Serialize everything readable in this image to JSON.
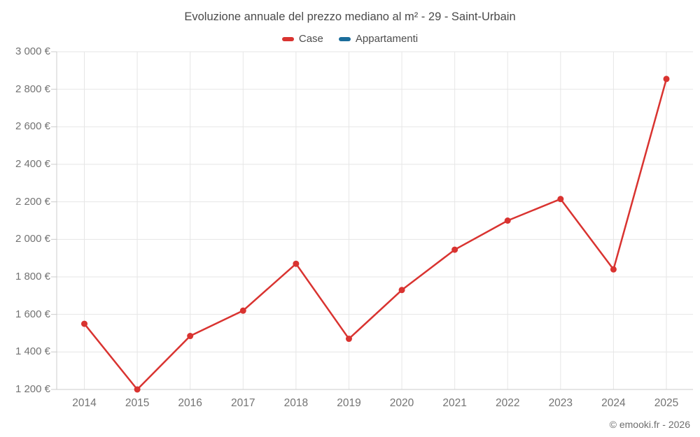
{
  "title": "Evoluzione annuale del prezzo mediano al m² - 29 - Saint-Urbain",
  "credit": "© emooki.fr - 2026",
  "legend": [
    {
      "label": "Case",
      "color": "#d93330"
    },
    {
      "label": "Appartamenti",
      "color": "#1b6d9b"
    }
  ],
  "colors": {
    "grid": "#e6e6e6",
    "axis": "#cccccc",
    "tick": "#cccccc"
  },
  "chart_data": {
    "type": "line",
    "title": "Evoluzione annuale del prezzo mediano al m² - 29 - Saint-Urbain",
    "xlabel": "",
    "ylabel": "",
    "categories": [
      2014,
      2015,
      2016,
      2017,
      2018,
      2019,
      2020,
      2021,
      2022,
      2023,
      2024,
      2025
    ],
    "series": [
      {
        "name": "Case",
        "color": "#d93330",
        "values": [
          1550,
          1200,
          1485,
          1620,
          1870,
          1470,
          1730,
          1945,
          2100,
          2215,
          1840,
          2855
        ]
      },
      {
        "name": "Appartamenti",
        "color": "#1b6d9b",
        "values": []
      }
    ],
    "ylim": [
      1200,
      3000
    ],
    "y_ticks": [
      {
        "value": 1200,
        "label": "1 200 €"
      },
      {
        "value": 1400,
        "label": "1 400 €"
      },
      {
        "value": 1600,
        "label": "1 600 €"
      },
      {
        "value": 1800,
        "label": "1 800 €"
      },
      {
        "value": 2000,
        "label": "2 000 €"
      },
      {
        "value": 2200,
        "label": "2 200 €"
      },
      {
        "value": 2400,
        "label": "2 400 €"
      },
      {
        "value": 2600,
        "label": "2 600 €"
      },
      {
        "value": 2800,
        "label": "2 800 €"
      },
      {
        "value": 3000,
        "label": "3 000 €"
      }
    ],
    "grid": true,
    "legend_position": "top",
    "marker": "circle"
  }
}
